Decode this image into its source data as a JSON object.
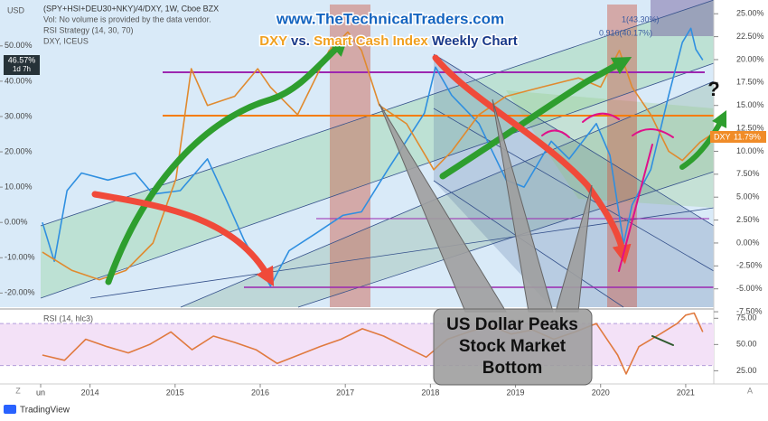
{
  "ui": {
    "axis_unit": "USD",
    "timer": "1d 7h",
    "brand": "TradingView",
    "corner_left": "Z",
    "corner_right": "A",
    "site": "www.TheTechnicalTraders.com",
    "headline": [
      {
        "text": "DXY",
        "color": "#f0a020"
      },
      {
        "text": "vs.",
        "color": "#1a3a8a"
      },
      {
        "text": "Smart Cash Index",
        "color": "#f0a020"
      },
      {
        "text": "Weekly Chart",
        "color": "#1a3a8a"
      }
    ],
    "callout": [
      "US Dollar Peaks",
      "Stock Market",
      "Bottom"
    ],
    "question": "?",
    "fib": [
      "1(43.30%)",
      "0.916(40.17%)"
    ]
  },
  "chart_data": [
    {
      "type": "line",
      "title": "(SPY+HSI+DEU30+NKY)/4/DXY, 1W, Cboe BZX",
      "notes": [
        "Vol: No volume is provided by the data vendor.",
        "RSI Strategy (14, 30, 70)",
        "DXY, ICEUS"
      ],
      "xlim": [
        2013.42,
        2021.33
      ],
      "xticks": [
        {
          "value": 2013.42,
          "label": "un"
        },
        2014,
        2015,
        2016,
        2017,
        2018,
        2019,
        2020,
        2021
      ],
      "ylim": [
        -24,
        63
      ],
      "yticks": [
        {
          "value": 50,
          "label": "50.00%"
        },
        {
          "value": 40,
          "label": "40.00%"
        },
        {
          "value": 30,
          "label": "30.00%"
        },
        {
          "value": 20,
          "label": "20.00%"
        },
        {
          "value": 10,
          "label": "10.00%"
        },
        {
          "value": 0,
          "label": "0.00%"
        },
        {
          "value": -10,
          "label": "-10.00%"
        },
        {
          "value": -20,
          "label": "-20.00%"
        }
      ],
      "y2lim": [
        -7,
        26.5
      ],
      "y2ticks": [
        {
          "value": 25,
          "label": "25.00%"
        },
        {
          "value": 22.5,
          "label": "22.50%"
        },
        {
          "value": 20,
          "label": "20.00%"
        },
        {
          "value": 17.5,
          "label": "17.50%"
        },
        {
          "value": 15,
          "label": "15.00%"
        },
        {
          "value": 12.5,
          "label": "12.50%"
        },
        {
          "value": 10,
          "label": "10.00%"
        },
        {
          "value": 7.5,
          "label": "7.50%"
        },
        {
          "value": 5,
          "label": "5.00%"
        },
        {
          "value": 2.5,
          "label": "2.50%"
        },
        {
          "value": 0,
          "label": "0.00%"
        },
        {
          "value": -2.5,
          "label": "-2.50%"
        },
        {
          "value": -5,
          "label": "-5.00%"
        },
        {
          "value": -7.5,
          "label": "-7.50%"
        }
      ],
      "series": [
        {
          "color": "#2f8fe0",
          "axis": "y",
          "last_label": "46.57%",
          "x": [
            2013.44,
            2013.58,
            2013.73,
            2013.9,
            2014.21,
            2014.53,
            2014.74,
            2015.06,
            2015.38,
            2015.59,
            2015.81,
            2016.12,
            2016.34,
            2016.66,
            2016.97,
            2017.19,
            2017.5,
            2017.93,
            2018.06,
            2018.25,
            2018.57,
            2018.89,
            2019.1,
            2019.42,
            2019.63,
            2019.95,
            2020.11,
            2020.27,
            2020.37,
            2020.59,
            2020.8,
            2020.96,
            2021.06,
            2021.12,
            2021.2
          ],
          "values": [
            0,
            -11,
            9,
            14,
            12,
            14,
            8,
            9,
            18,
            7,
            -5,
            -18,
            -8,
            -3,
            2,
            3,
            15,
            31,
            44,
            36,
            28,
            12,
            10,
            23,
            18,
            28,
            19,
            -6,
            5,
            15,
            36,
            51,
            55,
            49,
            46
          ]
        },
        {
          "name": "DXY",
          "color": "#e08a2e",
          "axis": "y2",
          "last_label": "11.79%",
          "x": [
            2013.44,
            2013.79,
            2014.11,
            2014.42,
            2014.74,
            2015.01,
            2015.19,
            2015.38,
            2015.7,
            2015.97,
            2016.12,
            2016.44,
            2016.81,
            2017.03,
            2017.19,
            2017.4,
            2017.72,
            2018.04,
            2018.25,
            2018.57,
            2018.89,
            2019.31,
            2019.74,
            2020.0,
            2020.22,
            2020.37,
            2020.59,
            2020.8,
            2020.96,
            2021.17,
            2021.33
          ],
          "values": [
            -1,
            -3,
            -4,
            -3,
            0,
            7,
            19,
            15,
            16,
            19,
            17,
            14,
            21,
            23,
            21,
            15,
            13,
            8,
            10,
            14,
            16,
            17,
            18,
            17,
            21,
            17,
            14,
            10,
            9,
            11,
            12
          ]
        }
      ]
    },
    {
      "type": "line",
      "title": "RSI (14, hlc3)",
      "color": "#e07a3f",
      "xlim": [
        2013.42,
        2021.33
      ],
      "ylim": [
        15,
        83
      ],
      "yticks": [
        {
          "value": 75,
          "label": "75.00"
        },
        {
          "value": 50,
          "label": "50.00"
        },
        {
          "value": 25,
          "label": "25.00"
        }
      ],
      "bands": [
        30,
        70
      ],
      "x": [
        2013.44,
        2013.7,
        2013.95,
        2014.2,
        2014.45,
        2014.7,
        2014.95,
        2015.2,
        2015.45,
        2015.7,
        2015.95,
        2016.2,
        2016.45,
        2016.7,
        2016.95,
        2017.2,
        2017.45,
        2017.7,
        2017.95,
        2018.2,
        2018.45,
        2018.7,
        2018.95,
        2019.2,
        2019.45,
        2019.7,
        2019.95,
        2020.2,
        2020.3,
        2020.45,
        2020.7,
        2020.9,
        2021.0,
        2021.1,
        2021.2
      ],
      "values": [
        40,
        35,
        55,
        48,
        42,
        50,
        62,
        45,
        58,
        52,
        45,
        32,
        40,
        48,
        55,
        65,
        58,
        48,
        38,
        55,
        62,
        68,
        60,
        64,
        55,
        62,
        70,
        40,
        22,
        48,
        60,
        70,
        78,
        80,
        62
      ]
    }
  ]
}
